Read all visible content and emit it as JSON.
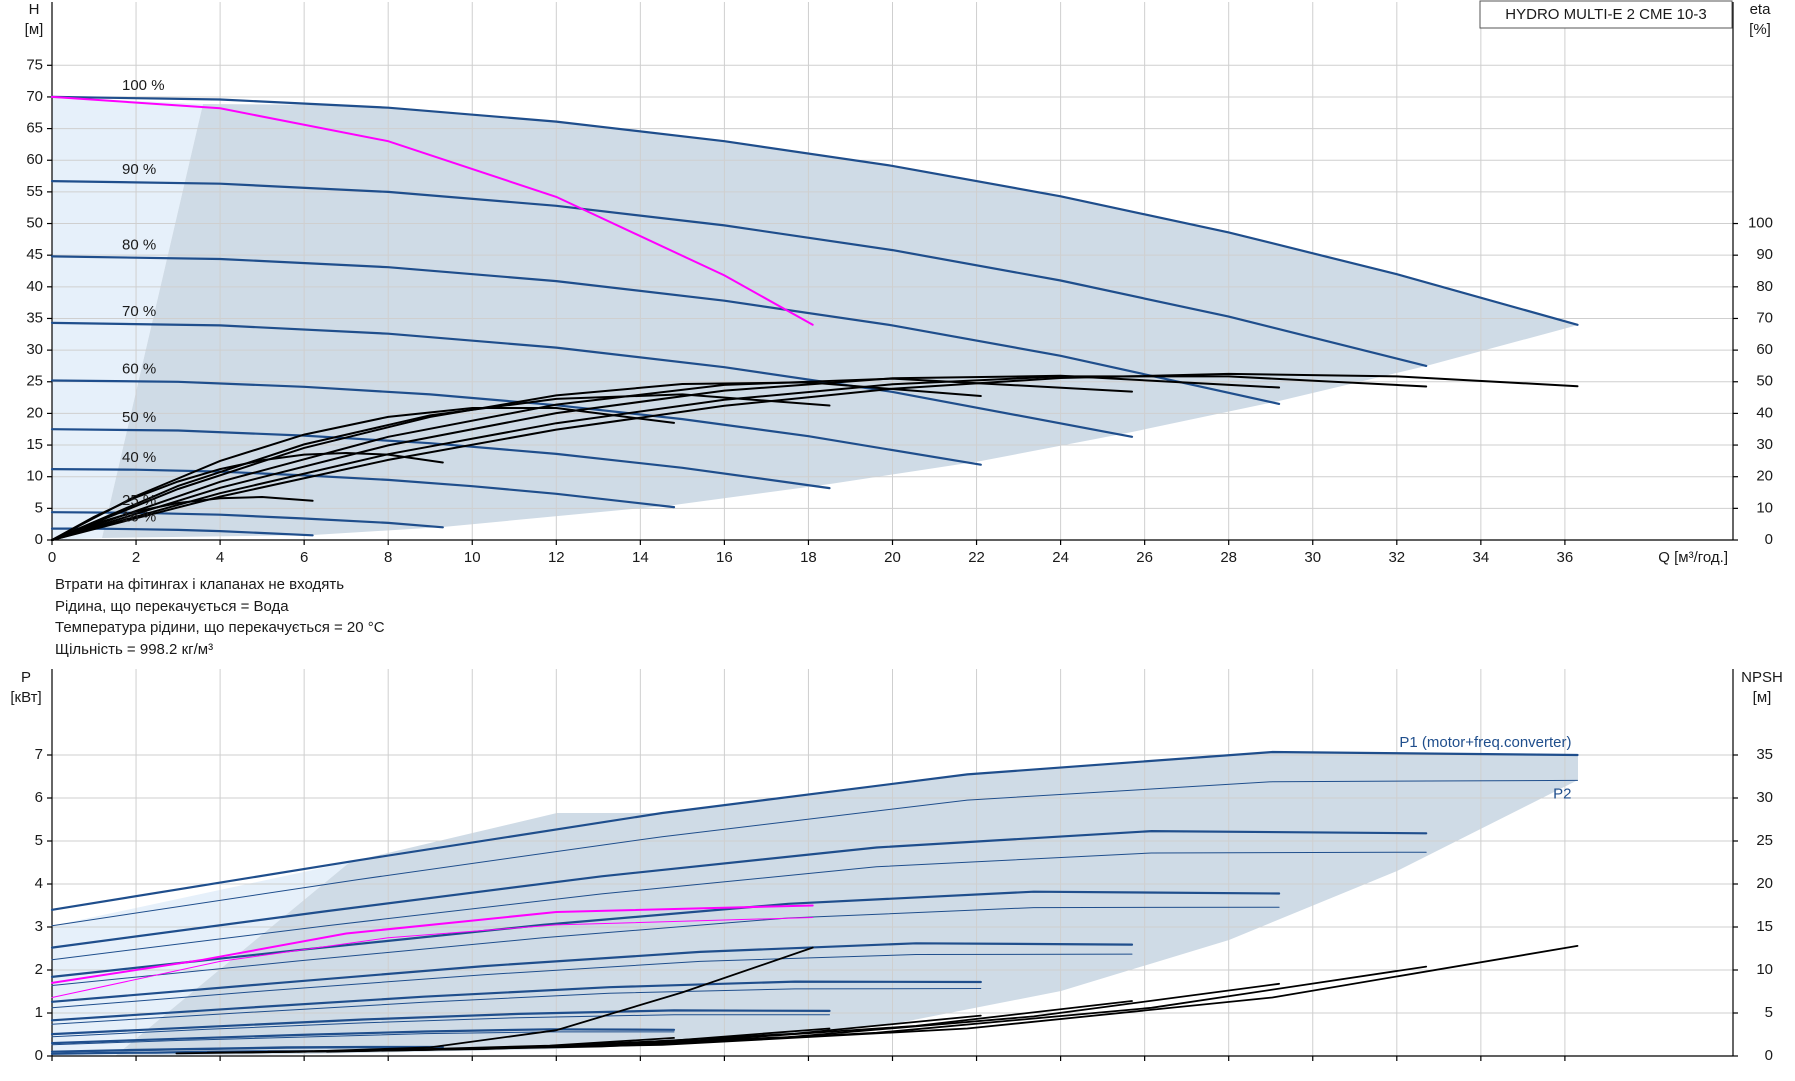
{
  "notes": [
    "Втрати на фітингах і клапанах не входять",
    "Рідина, що перекачується = Вода",
    "Температура рідини, що перекачується = 20 °C",
    "Щільність = 998.2 кг/м³"
  ],
  "chart_data": [
    {
      "type": "line",
      "title": "HYDRO MULTI-E 2 CME 10-3",
      "y_label": "H",
      "y_unit": "[м]",
      "y2_label": "eta",
      "y2_unit": "[%]",
      "x_label": "Q [м³/год.]",
      "xlim": [
        0,
        40
      ],
      "xticks": [
        0,
        2,
        4,
        6,
        8,
        10,
        12,
        14,
        16,
        18,
        20,
        22,
        24,
        26,
        28,
        30,
        32,
        34,
        36
      ],
      "ylim": [
        0,
        85
      ],
      "yticks": [
        0,
        5,
        10,
        15,
        20,
        25,
        30,
        35,
        40,
        45,
        50,
        55,
        60,
        65,
        70,
        75
      ],
      "y2lim": [
        0,
        170
      ],
      "y2ticks": [
        0,
        10,
        20,
        30,
        40,
        50,
        60,
        70,
        80,
        90,
        100
      ],
      "grid": true,
      "series": [
        {
          "name": "100 %",
          "color": "#1f4e8c",
          "linewidth": 2.2,
          "x": [
            0,
            4,
            8,
            12,
            16,
            20,
            24,
            28,
            32,
            36.3
          ],
          "values": [
            70,
            69.6,
            68.3,
            66.1,
            63.0,
            59.1,
            54.3,
            48.6,
            42.0,
            34.0
          ]
        },
        {
          "name": "90 %",
          "color": "#1f4e8c",
          "linewidth": 2.2,
          "x": [
            0,
            4,
            8,
            12,
            16,
            20,
            24,
            28,
            32.7
          ],
          "values": [
            56.7,
            56.3,
            55.0,
            52.8,
            49.7,
            45.8,
            41.0,
            35.3,
            27.5
          ]
        },
        {
          "name": "80 %",
          "color": "#1f4e8c",
          "linewidth": 2.2,
          "x": [
            0,
            4,
            8,
            12,
            16,
            20,
            24,
            29.2
          ],
          "values": [
            44.8,
            44.4,
            43.1,
            40.9,
            37.8,
            33.9,
            29.1,
            21.5
          ]
        },
        {
          "name": "70 %",
          "color": "#1f4e8c",
          "linewidth": 2.2,
          "x": [
            0,
            4,
            8,
            12,
            16,
            20,
            25.7
          ],
          "values": [
            34.3,
            33.9,
            32.6,
            30.4,
            27.3,
            23.4,
            16.3
          ]
        },
        {
          "name": "60 %",
          "color": "#1f4e8c",
          "linewidth": 2.2,
          "x": [
            0,
            3,
            6,
            9,
            12,
            15,
            18,
            22.1
          ],
          "values": [
            25.2,
            25.0,
            24.2,
            23.0,
            21.3,
            19.1,
            16.4,
            11.9
          ]
        },
        {
          "name": "50 %",
          "color": "#1f4e8c",
          "linewidth": 2.2,
          "x": [
            0,
            3,
            6,
            9,
            12,
            15,
            18.5
          ],
          "values": [
            17.5,
            17.3,
            16.5,
            15.3,
            13.6,
            11.4,
            8.2
          ]
        },
        {
          "name": "40 %",
          "color": "#1f4e8c",
          "linewidth": 2.2,
          "x": [
            0,
            2,
            4,
            6,
            8,
            10,
            12,
            14.8
          ],
          "values": [
            11.2,
            11.1,
            10.8,
            10.2,
            9.5,
            8.5,
            7.3,
            5.2
          ]
        },
        {
          "name": "25 %",
          "color": "#1f4e8c",
          "linewidth": 2.2,
          "x": [
            0,
            2,
            4,
            6,
            8,
            9.3
          ],
          "values": [
            4.4,
            4.3,
            4.0,
            3.4,
            2.7,
            2.0
          ]
        },
        {
          "name": "16 %",
          "color": "#1f4e8c",
          "linewidth": 2.2,
          "x": [
            0,
            1,
            2,
            3,
            4,
            5,
            6.2
          ],
          "values": [
            1.8,
            1.8,
            1.7,
            1.6,
            1.4,
            1.1,
            0.75
          ]
        },
        {
          "color": "#ff00ff",
          "linewidth": 2,
          "x": [
            0,
            4,
            8,
            12,
            16,
            18.1
          ],
          "values": [
            70,
            68.2,
            63.0,
            54.2,
            41.8,
            34.0
          ]
        },
        {
          "axis": "y2",
          "color": "#000000",
          "linewidth": 2,
          "x": [
            0,
            4,
            8,
            12,
            16,
            20,
            24,
            28,
            32,
            36.3
          ],
          "values": [
            0,
            13.7,
            25.3,
            34.9,
            42.4,
            47.8,
            51.2,
            52.5,
            51.7,
            48.6
          ]
        },
        {
          "axis": "y2",
          "color": "#000000",
          "linewidth": 2,
          "x": [
            0,
            4,
            8,
            12,
            16,
            20,
            24,
            28,
            32.7
          ],
          "values": [
            0,
            14.8,
            27.1,
            36.9,
            44.3,
            49.2,
            51.7,
            51.7,
            48.5
          ]
        },
        {
          "axis": "y2",
          "color": "#000000",
          "linewidth": 2,
          "x": [
            0,
            4,
            8,
            12,
            16,
            20,
            24,
            29.2
          ],
          "values": [
            0,
            16.5,
            29.9,
            40.1,
            47.2,
            51.1,
            51.9,
            48.2
          ]
        },
        {
          "axis": "y2",
          "color": "#000000",
          "linewidth": 2,
          "x": [
            0,
            4,
            8,
            12,
            16,
            20,
            25.7
          ],
          "values": [
            0,
            18.4,
            32.6,
            42.8,
            49.0,
            51,
            46.9
          ]
        },
        {
          "axis": "y2",
          "color": "#000000",
          "linewidth": 2,
          "x": [
            0,
            3,
            6,
            9,
            12,
            15,
            18,
            22.1
          ],
          "values": [
            0,
            16.1,
            29.1,
            38.9,
            45.7,
            49.3,
            49.8,
            45.5
          ]
        },
        {
          "axis": "y2",
          "color": "#000000",
          "linewidth": 2,
          "x": [
            0,
            3,
            6,
            9,
            12,
            15,
            18.5
          ],
          "values": [
            0,
            17.1,
            30.2,
            39.4,
            44.6,
            46.0,
            42.5
          ]
        },
        {
          "axis": "y2",
          "color": "#000000",
          "linewidth": 2,
          "x": [
            0,
            2,
            4,
            6,
            8,
            10,
            12,
            14.8
          ],
          "values": [
            0,
            13.9,
            25.0,
            33.3,
            38.9,
            41.7,
            41.7,
            37.0
          ]
        },
        {
          "axis": "y2",
          "color": "#000000",
          "linewidth": 2,
          "x": [
            0,
            1,
            2,
            3,
            4,
            5,
            6,
            7,
            8,
            9.3
          ],
          "values": [
            0,
            7.3,
            13.5,
            18.5,
            22.4,
            25.2,
            27.0,
            27.5,
            27.0,
            24.5
          ]
        },
        {
          "axis": "y2",
          "color": "#000000",
          "linewidth": 2,
          "x": [
            0,
            1,
            2,
            3,
            4,
            5,
            6.2
          ],
          "values": [
            0,
            5.1,
            9.0,
            11.7,
            13.2,
            13.6,
            12.4
          ]
        }
      ]
    },
    {
      "type": "line",
      "y_label": "P",
      "y_unit": "[кВт]",
      "y2_label": "NPSH",
      "y2_unit": "[м]",
      "xlim": [
        0,
        40
      ],
      "xticks": [
        0,
        2,
        4,
        6,
        8,
        10,
        12,
        14,
        16,
        18,
        20,
        22,
        24,
        26,
        28,
        30,
        32,
        34,
        36
      ],
      "ylim": [
        0,
        9
      ],
      "yticks": [
        0,
        1,
        2,
        3,
        4,
        5,
        6,
        7
      ],
      "y2lim": [
        0,
        45
      ],
      "y2ticks": [
        0,
        5,
        10,
        15,
        20,
        25,
        30,
        35
      ],
      "grid": true,
      "series": [
        {
          "name": "P1 (motor+freq.converter)",
          "color": "#1f4e8c",
          "linewidth": 2.2,
          "x": [
            0,
            7.26,
            14.52,
            21.78,
            29.04,
            36.3
          ],
          "values": [
            3.4,
            4.55,
            5.65,
            6.55,
            7.07,
            7.0
          ]
        },
        {
          "name": "P2",
          "color": "#1f4e8c",
          "linewidth": 1,
          "x": [
            0,
            7.26,
            14.52,
            21.78,
            29.04,
            36.3
          ],
          "values": [
            3.03,
            4.1,
            5.1,
            5.95,
            6.38,
            6.41
          ]
        },
        {
          "color": "#1f4e8c",
          "linewidth": 2.2,
          "x": [
            0,
            6.54,
            13.08,
            19.62,
            26.16,
            32.7
          ],
          "values": [
            2.52,
            3.37,
            4.18,
            4.85,
            5.23,
            5.18
          ]
        },
        {
          "color": "#1f4e8c",
          "linewidth": 1,
          "x": [
            0,
            6.54,
            13.08,
            19.62,
            26.16,
            32.7
          ],
          "values": [
            2.24,
            3.03,
            3.77,
            4.4,
            4.72,
            4.74
          ]
        },
        {
          "color": "#1f4e8c",
          "linewidth": 2.2,
          "x": [
            0,
            5.84,
            11.68,
            17.52,
            23.36,
            29.2
          ],
          "values": [
            1.84,
            2.46,
            3.05,
            3.54,
            3.82,
            3.78
          ]
        },
        {
          "color": "#1f4e8c",
          "linewidth": 1,
          "x": [
            0,
            5.84,
            11.68,
            17.52,
            23.36,
            29.2
          ],
          "values": [
            1.64,
            2.21,
            2.75,
            3.21,
            3.45,
            3.46
          ]
        },
        {
          "color": "#1f4e8c",
          "linewidth": 2.2,
          "x": [
            0,
            5.14,
            10.28,
            15.42,
            20.56,
            25.7
          ],
          "values": [
            1.26,
            1.68,
            2.09,
            2.42,
            2.62,
            2.59
          ]
        },
        {
          "color": "#1f4e8c",
          "linewidth": 1,
          "x": [
            0,
            5.14,
            10.28,
            15.42,
            20.56,
            25.7
          ],
          "values": [
            1.12,
            1.52,
            1.89,
            2.2,
            2.36,
            2.37
          ]
        },
        {
          "color": "#1f4e8c",
          "linewidth": 2.2,
          "x": [
            0,
            4.42,
            8.84,
            13.26,
            17.68,
            22.1
          ],
          "values": [
            0.83,
            1.11,
            1.38,
            1.6,
            1.73,
            1.72
          ]
        },
        {
          "color": "#1f4e8c",
          "linewidth": 1,
          "x": [
            0,
            4.42,
            8.84,
            13.26,
            17.68,
            22.1
          ],
          "values": [
            0.74,
            1.0,
            1.25,
            1.46,
            1.56,
            1.57
          ]
        },
        {
          "color": "#1f4e8c",
          "linewidth": 2.2,
          "x": [
            0,
            3.7,
            7.4,
            11.1,
            14.8,
            18.5
          ],
          "values": [
            0.51,
            0.68,
            0.85,
            0.98,
            1.06,
            1.05
          ]
        },
        {
          "color": "#1f4e8c",
          "linewidth": 1,
          "x": [
            0,
            3.7,
            7.4,
            11.1,
            14.8,
            18.5
          ],
          "values": [
            0.45,
            0.62,
            0.77,
            0.89,
            0.96,
            0.96
          ]
        },
        {
          "color": "#1f4e8c",
          "linewidth": 2.2,
          "x": [
            0,
            2.96,
            5.92,
            8.88,
            11.84,
            14.8
          ],
          "values": [
            0.3,
            0.4,
            0.49,
            0.57,
            0.62,
            0.61
          ]
        },
        {
          "color": "#1f4e8c",
          "linewidth": 1,
          "x": [
            0,
            2.96,
            5.92,
            8.88,
            11.84,
            14.8
          ],
          "values": [
            0.26,
            0.36,
            0.44,
            0.52,
            0.56,
            0.56
          ]
        },
        {
          "color": "#1f4e8c",
          "linewidth": 2.2,
          "x": [
            0,
            1.86,
            3.72,
            5.58,
            7.44,
            9.3
          ],
          "values": [
            0.1,
            0.14,
            0.17,
            0.2,
            0.21,
            0.21
          ]
        },
        {
          "color": "#1f4e8c",
          "linewidth": 1,
          "x": [
            0,
            1.86,
            3.72,
            5.58,
            7.44,
            9.3
          ],
          "values": [
            0.09,
            0.12,
            0.15,
            0.18,
            0.19,
            0.19
          ]
        },
        {
          "color": "#1f4e8c",
          "linewidth": 2.2,
          "x": [
            0,
            1.24,
            2.48,
            3.72,
            4.96,
            6.2
          ],
          "values": [
            0.05,
            0.07,
            0.08,
            0.1,
            0.11,
            0.11
          ]
        },
        {
          "color": "#1f4e8c",
          "linewidth": 1,
          "x": [
            0,
            1.24,
            2.48,
            3.72,
            4.96,
            6.2
          ],
          "values": [
            0.05,
            0.06,
            0.08,
            0.09,
            0.1,
            0.1
          ]
        },
        {
          "color": "#ff00ff",
          "linewidth": 2,
          "x": [
            0,
            3.6,
            7,
            12,
            18.1
          ],
          "values": [
            1.7,
            2.24,
            2.85,
            3.35,
            3.5
          ]
        },
        {
          "color": "#ff00ff",
          "linewidth": 1,
          "x": [
            0,
            4,
            8,
            12,
            18.1
          ],
          "values": [
            1.36,
            2.2,
            2.75,
            3.05,
            3.22
          ]
        },
        {
          "axis": "y2",
          "color": "#000000",
          "linewidth": 1.8,
          "x": [
            7.26,
            14.52,
            21.78,
            29.04,
            36.3
          ],
          "values": [
            0.6,
            1.3,
            3.2,
            6.8,
            12.8
          ]
        },
        {
          "axis": "y2",
          "color": "#000000",
          "linewidth": 1.8,
          "x": [
            6.54,
            13.08,
            19.62,
            26.16,
            32.7
          ],
          "values": [
            0.5,
            1.1,
            2.7,
            5.6,
            10.4
          ]
        },
        {
          "axis": "y2",
          "color": "#000000",
          "linewidth": 1.8,
          "x": [
            5.84,
            11.68,
            17.52,
            23.36,
            29.2
          ],
          "values": [
            0.5,
            1.0,
            2.2,
            4.6,
            8.4
          ]
        },
        {
          "axis": "y2",
          "color": "#000000",
          "linewidth": 1.8,
          "x": [
            5.14,
            10.28,
            15.42,
            20.56,
            25.7
          ],
          "values": [
            0.5,
            0.8,
            1.8,
            3.5,
            6.4
          ]
        },
        {
          "axis": "y2",
          "color": "#000000",
          "linewidth": 1.8,
          "x": [
            4.42,
            8.84,
            13.26,
            17.68,
            22.1
          ],
          "values": [
            0.4,
            0.7,
            1.4,
            2.6,
            4.7
          ]
        },
        {
          "axis": "y2",
          "color": "#000000",
          "linewidth": 1.8,
          "x": [
            3.7,
            7.4,
            11.1,
            14.8,
            18.5
          ],
          "values": [
            0.4,
            0.6,
            1.0,
            1.8,
            3.2
          ]
        },
        {
          "axis": "y2",
          "color": "#000000",
          "linewidth": 1.8,
          "x": [
            2.96,
            5.92,
            8.88,
            11.84,
            14.8
          ],
          "values": [
            0.3,
            0.5,
            0.8,
            1.2,
            2.1
          ]
        },
        {
          "axis": "y2",
          "color": "#000000",
          "linewidth": 1.8,
          "x": [
            6,
            9,
            12,
            15,
            18.1
          ],
          "values": [
            0.5,
            1.0,
            3.0,
            7.4,
            12.6
          ]
        }
      ]
    }
  ]
}
